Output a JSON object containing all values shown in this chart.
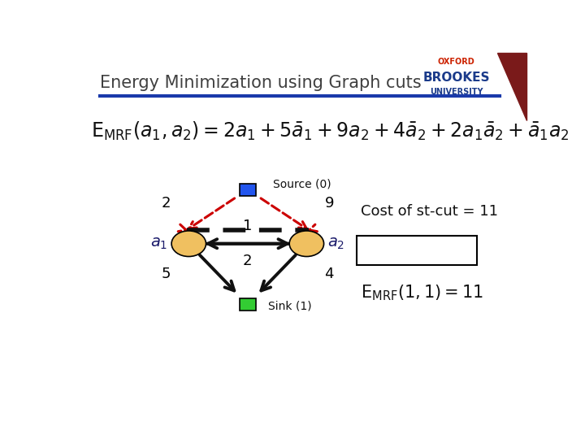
{
  "title": "Energy Minimization using Graph cuts",
  "bg_color": "#ffffff",
  "title_color": "#404040",
  "line_color": "#1a3aaa",
  "formula_text": "E",
  "source_label": "Source (0)",
  "sink_label": "Sink (1)",
  "node_color": "#f0c060",
  "source_color": "#2255ee",
  "sink_color": "#33cc33",
  "edge_color_cut": "#cc0000",
  "edge_color_normal": "#111111",
  "oxford_color": "#cc2200",
  "brookes_color": "#1a3a8a",
  "maroon_color": "#7a1a1a",
  "cost_text": "Cost of st-cut = 11",
  "g_src": [
    0.385,
    0.595
  ],
  "g_a1": [
    0.255,
    0.435
  ],
  "g_a2": [
    0.515,
    0.435
  ],
  "g_snk": [
    0.385,
    0.255
  ],
  "node_r": 0.038,
  "sq_size": 0.036
}
